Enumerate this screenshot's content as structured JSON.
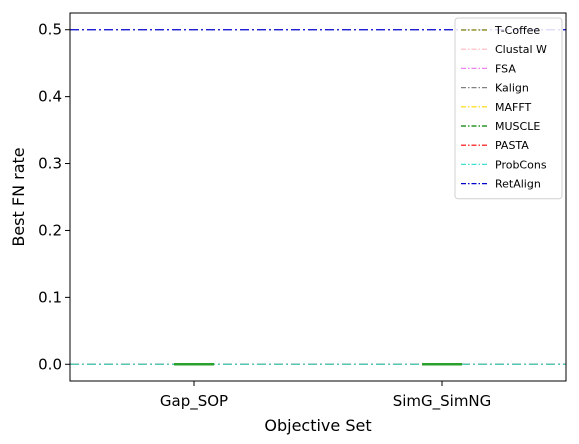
{
  "chart_data": {
    "type": "line",
    "xlabel": "Objective Set",
    "ylabel": "Best FN rate",
    "categories": [
      "Gap_SOP",
      "SimG_SimNG"
    ],
    "y_ticks": [
      "0.0",
      "0.1",
      "0.2",
      "0.3",
      "0.4",
      "0.5"
    ],
    "ylim": [
      -0.025,
      0.525
    ],
    "grid": false,
    "legend_position": "top-right",
    "series": [
      {
        "name": "T-Coffee",
        "color": "#808000",
        "style": "dashdot",
        "values": [
          0.0,
          0.0
        ]
      },
      {
        "name": "Clustal W",
        "color": "#ffb6c1",
        "style": "dashdot",
        "values": [
          0.0,
          0.0
        ]
      },
      {
        "name": "FSA",
        "color": "#ee82ee",
        "style": "dashdot",
        "values": [
          0.0,
          0.0
        ]
      },
      {
        "name": "Kalign",
        "color": "#808080",
        "style": "dashdot",
        "values": [
          0.0,
          0.0
        ]
      },
      {
        "name": "MAFFT",
        "color": "#ffd700",
        "style": "dashdot",
        "values": [
          0.0,
          0.0
        ]
      },
      {
        "name": "MUSCLE",
        "color": "#008000",
        "style": "dashdot",
        "values": [
          0.0,
          0.0
        ]
      },
      {
        "name": "PASTA",
        "color": "#ff0000",
        "style": "dashdot",
        "values": [
          0.0,
          0.0
        ]
      },
      {
        "name": "ProbCons",
        "color": "#40e0d0",
        "style": "dashdot",
        "values": [
          0.0,
          0.0
        ]
      },
      {
        "name": "RetAlign",
        "color": "#0000cd",
        "style": "dashdot",
        "values": [
          0.5,
          0.5
        ]
      }
    ],
    "boxes": [
      {
        "category": "Gap_SOP",
        "median": 0.0,
        "color": "#2ca02c"
      },
      {
        "category": "SimG_SimNG",
        "median": 0.0,
        "color": "#2ca02c"
      }
    ]
  }
}
